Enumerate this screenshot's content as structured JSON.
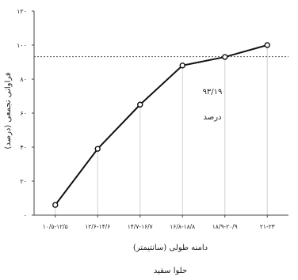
{
  "chart_data": {
    "type": "line",
    "title": "",
    "caption": "حلوا سفید",
    "xlabel": "دامنه طولی (سانتیمتر)",
    "ylabel": "فراوانی تجمعی (درصد)",
    "categories": [
      "۱۰/۵-۱۲/۵",
      "۱۲/۶-۱۴/۶",
      "۱۴/۷-۱۶/۷",
      "۱۶/۸-۱۸/۸",
      "۱۸/۹-۲۰/۹",
      "۲۱-۲۳"
    ],
    "series": [
      {
        "values": [
          6,
          39,
          65,
          88,
          93,
          100
        ]
      }
    ],
    "ylim": [
      0,
      120
    ],
    "yticks": [
      0,
      20,
      40,
      60,
      80,
      100,
      120
    ],
    "ytick_labels": [
      "۰",
      "۲۰",
      "۴۰",
      "۶۰",
      "۸۰",
      "۱۰۰",
      "۱۲۰"
    ],
    "reference_line": {
      "value": 93.19,
      "style": "dotted"
    },
    "annotation": {
      "value_text": "۹۳/۱۹",
      "unit_text": "درصد"
    },
    "grid": "vertical",
    "legend": "none"
  }
}
